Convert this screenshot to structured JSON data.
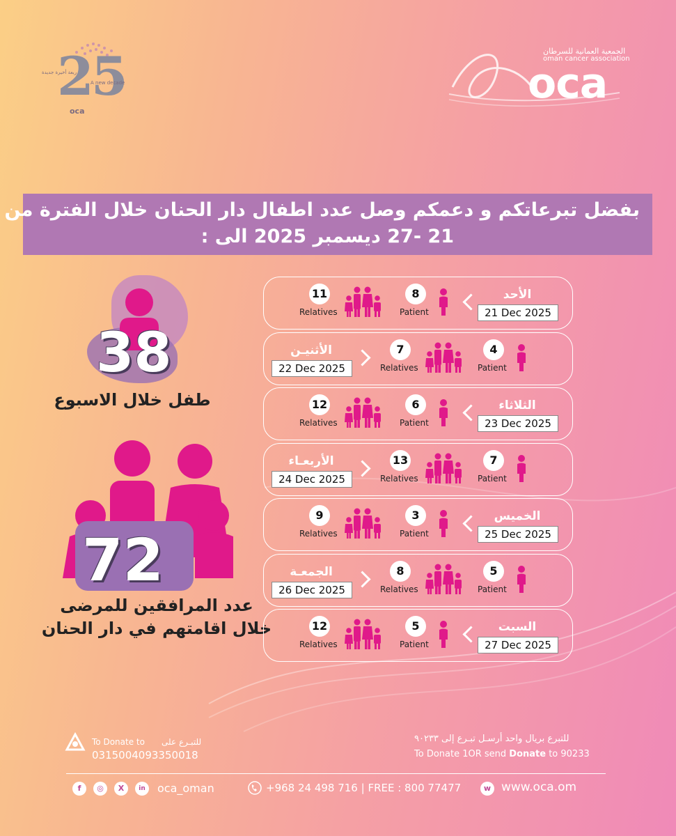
{
  "header": {
    "anniversary_logo": {
      "number": "25",
      "text_ar": "ربعة أخيرة جديدة",
      "text_en": "A new decade",
      "org": "oca"
    },
    "oca_logo": {
      "name_ar": "الجمعية العمانية للسرطان",
      "name_en": "oman cancer association",
      "mark": "oca"
    }
  },
  "banner": {
    "line1": "بفضل تبرعاتكم و دعمكم وصل عدد اطفال دار الحنان خلال الفترة من",
    "line2": "21 -27 ديسمبر 2025 الى :"
  },
  "stats": {
    "children_count": "38",
    "children_label": "طفل خلال الاسبوع",
    "companions_count": "72",
    "companions_label_1": "عدد المرافقين للمرضى",
    "companions_label_2": "خلال اقامتهم في دار الحنان"
  },
  "labels": {
    "relatives": "Relatives",
    "patient": "Patient"
  },
  "days": [
    {
      "day": "الأحد",
      "date": "21  Dec 2025",
      "relatives": "11",
      "patients": "8"
    },
    {
      "day": "الأثنيـن",
      "date": "22 Dec 2025",
      "relatives": "7",
      "patients": "4"
    },
    {
      "day": "الثلاثاء",
      "date": "23 Dec 2025",
      "relatives": "12",
      "patients": "6"
    },
    {
      "day": "الأربعـاء",
      "date": "24 Dec 2025",
      "relatives": "13",
      "patients": "7"
    },
    {
      "day": "الخميس",
      "date": "25 Dec 2025",
      "relatives": "9",
      "patients": "3"
    },
    {
      "day": "الجمعـة",
      "date": "26 Dec 2025",
      "relatives": "8",
      "patients": "5"
    },
    {
      "day": "السبت",
      "date": "27 Dec 2025",
      "relatives": "12",
      "patients": "5"
    }
  ],
  "footer": {
    "donate_label_ar": "للتبـرع على",
    "donate_label_en": "To Donate to",
    "account": "0315004093350018",
    "sms_ar": "للتبرع بريال واحد أرسـل تبـرع إلى ٩٠٢٣٣",
    "sms_en_prefix": "To Donate 1OR send ",
    "sms_en_keyword": "Donate",
    "sms_en_suffix": " to 90233",
    "social_handle": "oca_oman",
    "phone": "+968 24 498 716 | FREE : 800 77477",
    "website": "www.oca.om",
    "social_icons": [
      "facebook-icon",
      "instagram-icon",
      "x-icon",
      "linkedin-icon"
    ],
    "brand_color": "#e0198a",
    "accent_purple": "#b078b3"
  }
}
